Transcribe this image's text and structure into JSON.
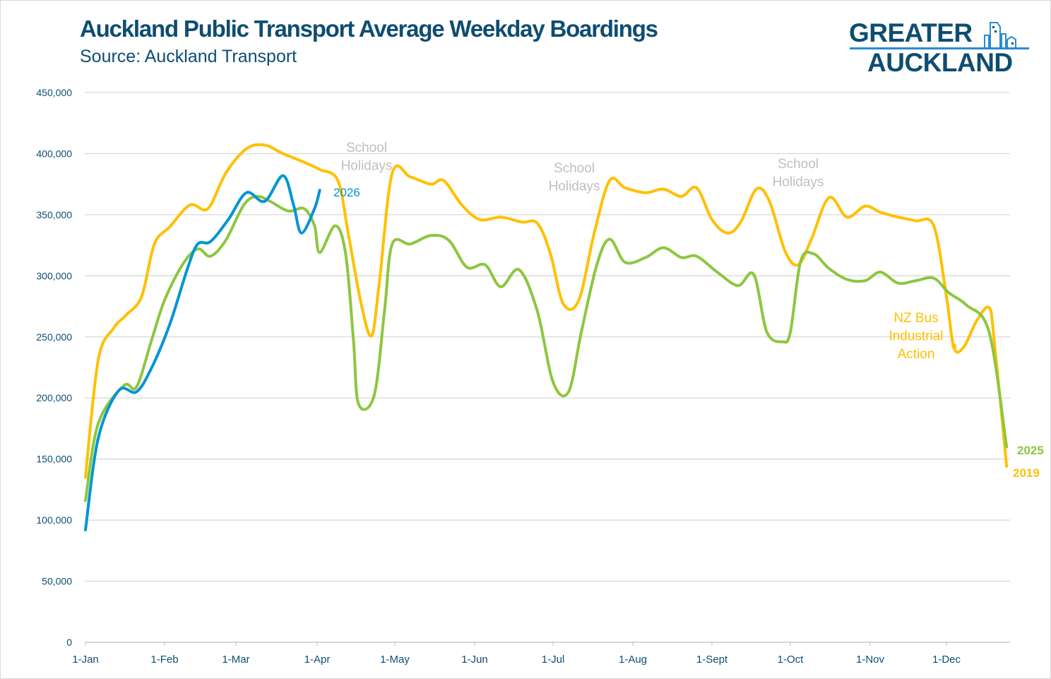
{
  "chart_data": {
    "type": "line",
    "title": "Auckland Public Transport Average Weekday Boardings",
    "subtitle": "Source: Auckland Transport",
    "xlabel": "",
    "ylabel": "",
    "ylim": [
      0,
      450000
    ],
    "y_ticks": [
      "0",
      "50,000",
      "100,000",
      "150,000",
      "200,000",
      "250,000",
      "300,000",
      "350,000",
      "400,000",
      "450,000"
    ],
    "x_ticks": [
      "1-Jan",
      "1-Feb",
      "1-Mar",
      "1-Apr",
      "1-May",
      "1-Jun",
      "1-Jul",
      "1-Aug",
      "1-Sept",
      "1-Oct",
      "1-Nov",
      "1-Dec"
    ],
    "grid": true,
    "legend": "inline labels at line ends",
    "series": [
      {
        "name": "2019",
        "color": "#ffc000",
        "x": [
          "1-Jan",
          "6-Jan",
          "12-Jan",
          "17-Jan",
          "23-Jan",
          "28-Jan",
          "3-Feb",
          "11-Feb",
          "18-Feb",
          "25-Feb",
          "5-Mar",
          "12-Mar",
          "19-Mar",
          "27-Mar",
          "2-Apr",
          "9-Apr",
          "13-Apr",
          "18-Apr",
          "22-Apr",
          "25-Apr",
          "30-Apr",
          "7-May",
          "15-May",
          "20-May",
          "27-May",
          "3-Jun",
          "11-Jun",
          "19-Jun",
          "25-Jun",
          "30-Jun",
          "5-Jul",
          "11-Jul",
          "17-Jul",
          "23-Jul",
          "29-Jul",
          "6-Aug",
          "13-Aug",
          "20-Aug",
          "26-Aug",
          "1-Sep",
          "7-Sep",
          "12-Sep",
          "18-Sep",
          "23-Sep",
          "29-Sep",
          "4-Oct",
          "9-Oct",
          "16-Oct",
          "23-Oct",
          "30-Oct",
          "5-Nov",
          "12-Nov",
          "19-Nov",
          "26-Nov",
          "1-Dec",
          "4-Dec",
          "8-Dec",
          "13-Dec",
          "18-Dec",
          "20-Dec",
          "25-Dec"
        ],
        "values": [
          135000,
          231000,
          257000,
          268000,
          283000,
          326000,
          340000,
          358000,
          355000,
          384000,
          404000,
          407000,
          400000,
          393000,
          387000,
          378000,
          335000,
          277000,
          251000,
          294000,
          384000,
          381000,
          375000,
          378000,
          358000,
          346000,
          348000,
          344000,
          343000,
          318000,
          277000,
          280000,
          335000,
          378000,
          372000,
          368000,
          371000,
          365000,
          372000,
          346000,
          335000,
          344000,
          371000,
          361000,
          320000,
          309000,
          329000,
          364000,
          348000,
          357000,
          352000,
          348000,
          345000,
          341000,
          283000,
          241000,
          242000,
          263000,
          274000,
          248000,
          144000
        ]
      },
      {
        "name": "2025",
        "color": "#8dc63f",
        "x": [
          "1-Jan",
          "6-Jan",
          "16-Jan",
          "21-Jan",
          "27-Jan",
          "1-Feb",
          "8-Feb",
          "14-Feb",
          "19-Feb",
          "25-Feb",
          "4-Mar",
          "9-Mar",
          "14-Mar",
          "21-Mar",
          "27-Mar",
          "31-Mar",
          "2-Apr",
          "8-Apr",
          "12-Apr",
          "15-Apr",
          "17-Apr",
          "23-Apr",
          "27-Apr",
          "30-Apr",
          "7-May",
          "15-May",
          "22-May",
          "29-May",
          "5-Jun",
          "11-Jun",
          "18-Jun",
          "25-Jun",
          "1-Jul",
          "7-Jul",
          "12-Jul",
          "18-Jul",
          "23-Jul",
          "29-Jul",
          "6-Aug",
          "13-Aug",
          "20-Aug",
          "26-Aug",
          "3-Sep",
          "11-Sep",
          "17-Sep",
          "22-Sep",
          "28-Sep",
          "1-Oct",
          "5-Oct",
          "10-Oct",
          "16-Oct",
          "23-Oct",
          "30-Oct",
          "5-Nov",
          "12-Nov",
          "19-Nov",
          "26-Nov",
          "2-Dec",
          "9-Dec",
          "18-Dec",
          "25-Dec"
        ],
        "values": [
          116000,
          179000,
          210000,
          209000,
          248000,
          280000,
          309000,
          322000,
          316000,
          329000,
          358000,
          365000,
          361000,
          353000,
          355000,
          341000,
          319000,
          341000,
          318000,
          248000,
          195000,
          202000,
          271000,
          326000,
          326000,
          333000,
          329000,
          307000,
          309000,
          291000,
          305000,
          271000,
          213000,
          205000,
          254000,
          309000,
          330000,
          311000,
          315000,
          323000,
          315000,
          316000,
          303000,
          292000,
          301000,
          254000,
          246000,
          254000,
          312000,
          318000,
          306000,
          297000,
          296000,
          303000,
          294000,
          296000,
          298000,
          286000,
          276000,
          254000,
          160000
        ]
      },
      {
        "name": "2026",
        "color": "#0095d3",
        "x": [
          "1-Jan",
          "6-Jan",
          "14-Jan",
          "21-Jan",
          "27-Jan",
          "3-Feb",
          "10-Feb",
          "14-Feb",
          "19-Feb",
          "26-Feb",
          "5-Mar",
          "12-Mar",
          "19-Mar",
          "23-Mar",
          "26-Mar",
          "31-Mar",
          "2-Apr"
        ],
        "values": [
          92000,
          167000,
          206000,
          205000,
          225000,
          260000,
          306000,
          326000,
          328000,
          346000,
          368000,
          361000,
          382000,
          358000,
          335000,
          355000,
          370000
        ]
      }
    ],
    "annotations": [
      {
        "text": [
          "School",
          "Holidays"
        ],
        "color": "#bfbfbf"
      },
      {
        "text": [
          "School",
          "Holidays"
        ],
        "color": "#bfbfbf"
      },
      {
        "text": [
          "School",
          "Holidays"
        ],
        "color": "#bfbfbf"
      },
      {
        "text": [
          "NZ Bus",
          "Industrial",
          "Action"
        ],
        "color": "#ffc000",
        "at": "4-Dec"
      }
    ]
  },
  "logo": {
    "line1": "GREATER",
    "line2": "AUCKLAND"
  }
}
